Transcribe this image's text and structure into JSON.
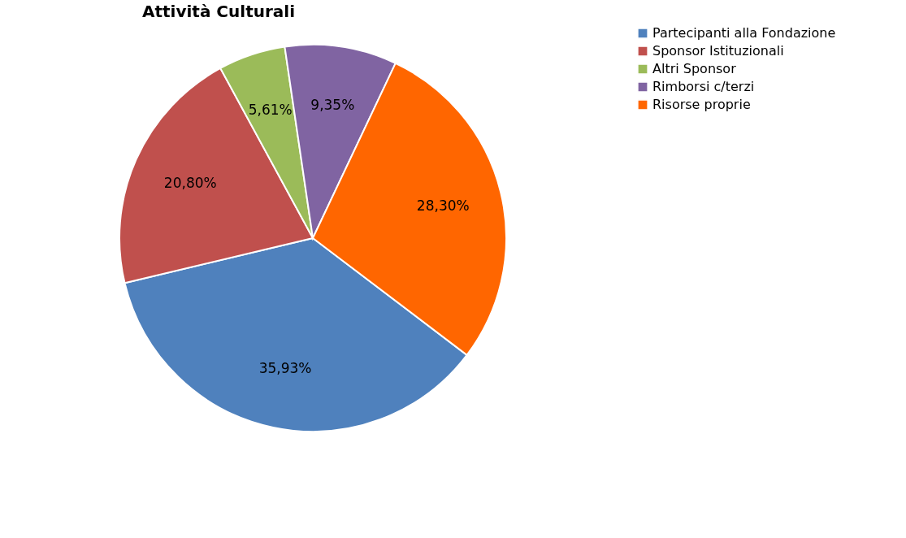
{
  "chart_data": {
    "type": "pie",
    "title": "Attività Culturali",
    "categories": [
      "Partecipanti alla Fondazione",
      "Sponsor Istituzionali",
      "Altri Sponsor",
      "Rimborsi c/terzi",
      "Risorse proprie"
    ],
    "values": [
      35.93,
      20.8,
      5.61,
      9.35,
      28.3
    ],
    "colors": [
      "#4f81bd",
      "#c0504d",
      "#9bbb59",
      "#8064a2",
      "#ff6600"
    ],
    "value_labels": [
      "35,93%",
      "20,80%",
      "5,61%",
      "9,35%",
      "28,30%"
    ],
    "legend": "right"
  }
}
